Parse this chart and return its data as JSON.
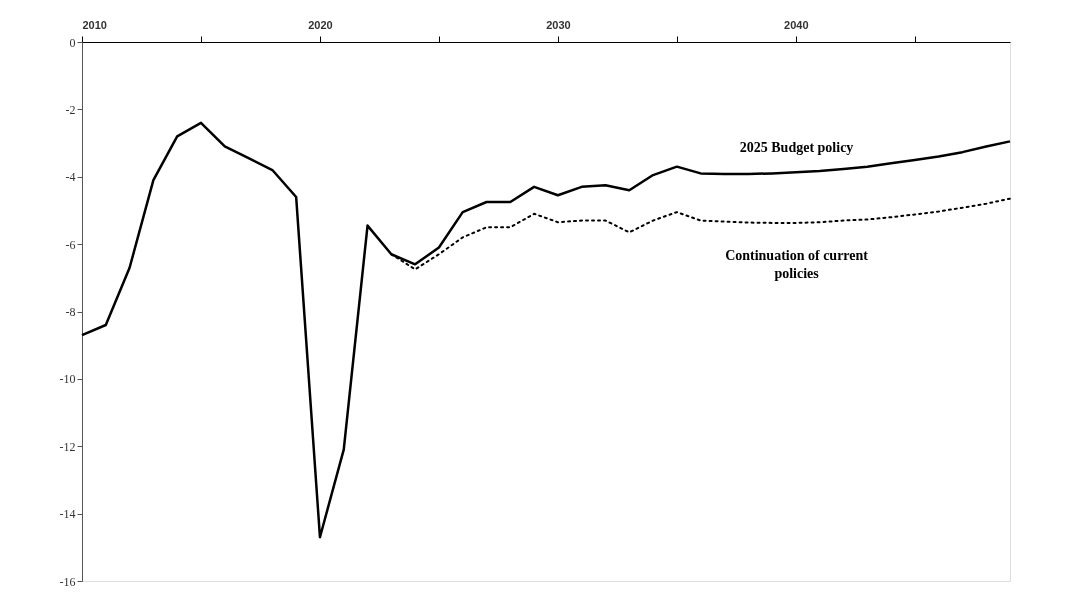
{
  "chart_data": {
    "type": "line",
    "grid": false,
    "marker": "none",
    "x": [
      2010,
      2011,
      2012,
      2013,
      2014,
      2015,
      2016,
      2017,
      2018,
      2019,
      2020,
      2021,
      2022,
      2023,
      2024,
      2025,
      2026,
      2027,
      2028,
      2029,
      2030,
      2031,
      2032,
      2033,
      2034,
      2035,
      2036,
      2037,
      2038,
      2039,
      2040,
      2041,
      2042,
      2043,
      2044,
      2045,
      2046,
      2047,
      2048,
      2049
    ],
    "xlim": [
      2010,
      2049
    ],
    "xticks": [
      2010,
      {
        "value": 2015,
        "label": null
      },
      2020,
      {
        "value": 2025,
        "label": null
      },
      2030,
      {
        "value": 2035,
        "label": null
      },
      2040,
      {
        "value": 2045,
        "label": null
      }
    ],
    "ylim": [
      -16,
      0
    ],
    "yticks": [
      0,
      -2,
      -4,
      -6,
      -8,
      -10,
      -12,
      -14,
      -16
    ],
    "series": [
      {
        "name": "2025 Budget policy",
        "color": "#000000",
        "line_style": "solid",
        "values": [
          -8.7,
          -8.4,
          -6.7,
          -4.1,
          -2.8,
          -2.4,
          -3.1,
          -3.45,
          -3.8,
          -4.6,
          -14.7,
          -12.1,
          -5.45,
          -6.3,
          -6.6,
          -6.1,
          -5.05,
          -4.75,
          -4.75,
          -4.3,
          -4.55,
          -4.3,
          -4.25,
          -4.4,
          -3.95,
          -3.7,
          -3.9,
          -3.92,
          -3.92,
          -3.9,
          -3.87,
          -3.83,
          -3.77,
          -3.7,
          -3.6,
          -3.5,
          -3.4,
          -3.27,
          -3.1,
          -2.95
        ]
      },
      {
        "name": "Continuation of current policies",
        "color": "#000000",
        "line_style": "dotted",
        "values": [
          null,
          null,
          null,
          null,
          null,
          null,
          null,
          null,
          null,
          null,
          null,
          null,
          null,
          -6.3,
          -6.75,
          -6.3,
          -5.8,
          -5.5,
          -5.5,
          -5.1,
          -5.35,
          -5.3,
          -5.3,
          -5.65,
          -5.3,
          -5.05,
          -5.3,
          -5.33,
          -5.36,
          -5.37,
          -5.37,
          -5.35,
          -5.3,
          -5.27,
          -5.2,
          -5.12,
          -5.03,
          -4.92,
          -4.8,
          -4.65
        ]
      }
    ]
  }
}
